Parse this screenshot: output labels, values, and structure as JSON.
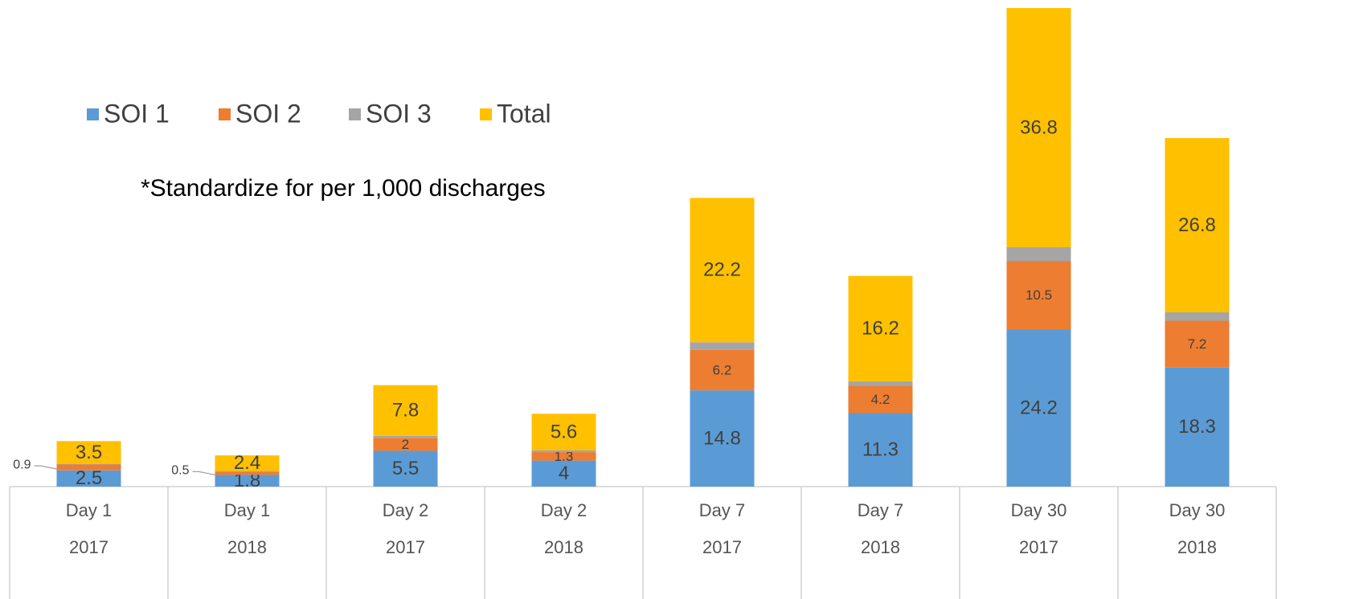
{
  "chart_data": {
    "type": "stacked_bar",
    "annotation": "*Standardize for per 1,000 discharges",
    "categories": [
      [
        "Day 1",
        "2017"
      ],
      [
        "Day 1",
        "2018"
      ],
      [
        "Day 2",
        "2017"
      ],
      [
        "Day 2",
        "2018"
      ],
      [
        "Day 7",
        "2017"
      ],
      [
        "Day 7",
        "2018"
      ],
      [
        "Day 30",
        "2017"
      ],
      [
        "Day 30",
        "2018"
      ]
    ],
    "series": [
      {
        "name": "SOI 1",
        "color": "#5b9bd5",
        "values": [
          2.5,
          1.8,
          5.5,
          4,
          14.8,
          11.3,
          24.2,
          18.3
        ]
      },
      {
        "name": "SOI 2",
        "color": "#ed7d31",
        "values": [
          0.9,
          0.5,
          2,
          1.3,
          6.2,
          4.2,
          10.5,
          7.2
        ]
      },
      {
        "name": "SOI 3",
        "color": "#a5a5a5",
        "values": [
          0.1,
          0.1,
          0.3,
          0.3,
          1.2,
          0.7,
          2.1,
          1.3
        ],
        "data_labels": false
      },
      {
        "name": "Total",
        "color": "#ffc000",
        "values": [
          3.5,
          2.4,
          7.8,
          5.6,
          22.2,
          16.2,
          36.8,
          26.8
        ]
      }
    ],
    "legend": "top-left"
  }
}
